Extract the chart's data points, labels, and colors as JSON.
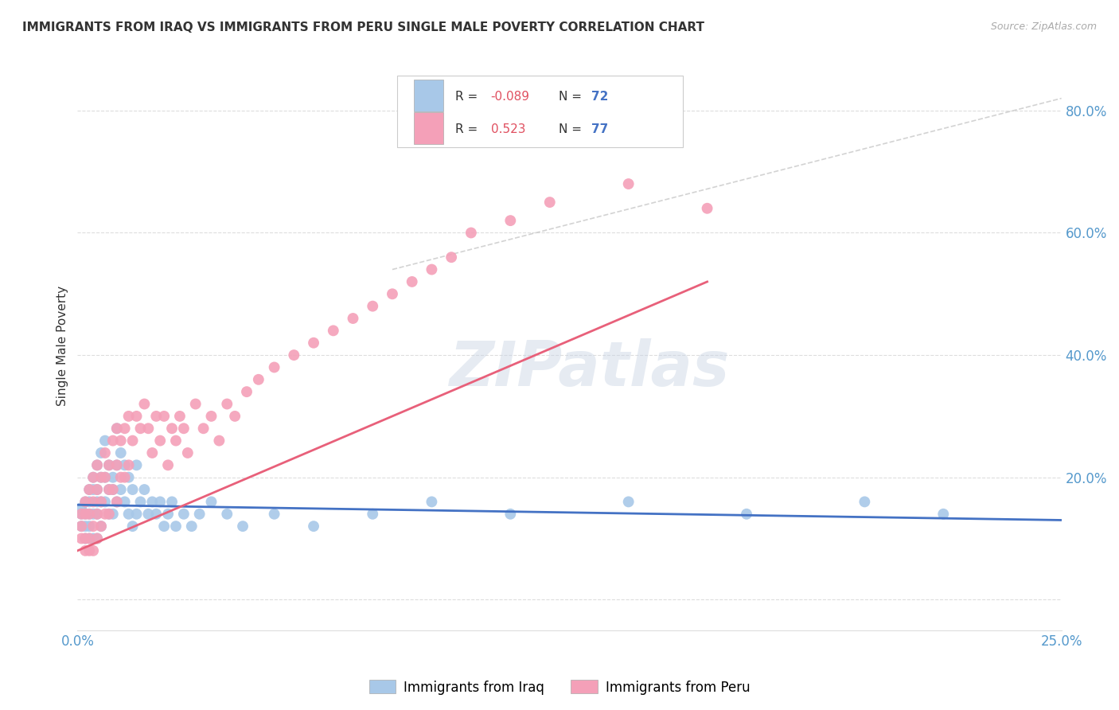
{
  "title": "IMMIGRANTS FROM IRAQ VS IMMIGRANTS FROM PERU SINGLE MALE POVERTY CORRELATION CHART",
  "source": "Source: ZipAtlas.com",
  "ylabel": "Single Male Poverty",
  "xlim": [
    0,
    0.25
  ],
  "ylim": [
    -0.05,
    0.88
  ],
  "iraq_color": "#a8c8e8",
  "peru_color": "#f4a0b8",
  "iraq_line_color": "#4472c4",
  "peru_line_color": "#e8607a",
  "diag_line_color": "#c8c8c8",
  "iraq_R": -0.089,
  "iraq_N": 72,
  "peru_R": 0.523,
  "peru_N": 77,
  "watermark": "ZIPatlas",
  "legend_label_iraq": "Immigrants from Iraq",
  "legend_label_peru": "Immigrants from Peru",
  "iraq_x": [
    0.001,
    0.001,
    0.001,
    0.002,
    0.002,
    0.002,
    0.002,
    0.003,
    0.003,
    0.003,
    0.003,
    0.003,
    0.004,
    0.004,
    0.004,
    0.004,
    0.005,
    0.005,
    0.005,
    0.005,
    0.005,
    0.006,
    0.006,
    0.006,
    0.006,
    0.007,
    0.007,
    0.007,
    0.008,
    0.008,
    0.008,
    0.009,
    0.009,
    0.009,
    0.01,
    0.01,
    0.01,
    0.011,
    0.011,
    0.012,
    0.012,
    0.013,
    0.013,
    0.014,
    0.014,
    0.015,
    0.015,
    0.016,
    0.017,
    0.018,
    0.019,
    0.02,
    0.021,
    0.022,
    0.023,
    0.024,
    0.025,
    0.027,
    0.029,
    0.031,
    0.034,
    0.038,
    0.042,
    0.05,
    0.06,
    0.075,
    0.09,
    0.11,
    0.14,
    0.17,
    0.2,
    0.22
  ],
  "iraq_y": [
    0.15,
    0.14,
    0.12,
    0.16,
    0.14,
    0.12,
    0.1,
    0.18,
    0.16,
    0.14,
    0.12,
    0.1,
    0.2,
    0.18,
    0.14,
    0.1,
    0.22,
    0.18,
    0.16,
    0.14,
    0.1,
    0.24,
    0.2,
    0.16,
    0.12,
    0.26,
    0.2,
    0.16,
    0.22,
    0.18,
    0.14,
    0.2,
    0.18,
    0.14,
    0.28,
    0.22,
    0.16,
    0.24,
    0.18,
    0.22,
    0.16,
    0.2,
    0.14,
    0.18,
    0.12,
    0.22,
    0.14,
    0.16,
    0.18,
    0.14,
    0.16,
    0.14,
    0.16,
    0.12,
    0.14,
    0.16,
    0.12,
    0.14,
    0.12,
    0.14,
    0.16,
    0.14,
    0.12,
    0.14,
    0.12,
    0.14,
    0.16,
    0.14,
    0.16,
    0.14,
    0.16,
    0.14
  ],
  "peru_x": [
    0.001,
    0.001,
    0.001,
    0.002,
    0.002,
    0.002,
    0.002,
    0.003,
    0.003,
    0.003,
    0.003,
    0.004,
    0.004,
    0.004,
    0.004,
    0.005,
    0.005,
    0.005,
    0.005,
    0.006,
    0.006,
    0.006,
    0.007,
    0.007,
    0.007,
    0.008,
    0.008,
    0.008,
    0.009,
    0.009,
    0.01,
    0.01,
    0.01,
    0.011,
    0.011,
    0.012,
    0.012,
    0.013,
    0.013,
    0.014,
    0.015,
    0.016,
    0.017,
    0.018,
    0.019,
    0.02,
    0.021,
    0.022,
    0.023,
    0.024,
    0.025,
    0.026,
    0.027,
    0.028,
    0.03,
    0.032,
    0.034,
    0.036,
    0.038,
    0.04,
    0.043,
    0.046,
    0.05,
    0.055,
    0.06,
    0.065,
    0.07,
    0.075,
    0.08,
    0.085,
    0.09,
    0.095,
    0.1,
    0.11,
    0.12,
    0.14,
    0.16
  ],
  "peru_y": [
    0.14,
    0.12,
    0.1,
    0.16,
    0.14,
    0.1,
    0.08,
    0.18,
    0.14,
    0.1,
    0.08,
    0.2,
    0.16,
    0.12,
    0.08,
    0.22,
    0.18,
    0.14,
    0.1,
    0.2,
    0.16,
    0.12,
    0.24,
    0.2,
    0.14,
    0.22,
    0.18,
    0.14,
    0.26,
    0.18,
    0.28,
    0.22,
    0.16,
    0.26,
    0.2,
    0.28,
    0.2,
    0.3,
    0.22,
    0.26,
    0.3,
    0.28,
    0.32,
    0.28,
    0.24,
    0.3,
    0.26,
    0.3,
    0.22,
    0.28,
    0.26,
    0.3,
    0.28,
    0.24,
    0.32,
    0.28,
    0.3,
    0.26,
    0.32,
    0.3,
    0.34,
    0.36,
    0.38,
    0.4,
    0.42,
    0.44,
    0.46,
    0.48,
    0.5,
    0.52,
    0.54,
    0.56,
    0.6,
    0.62,
    0.65,
    0.68,
    0.64
  ],
  "iraq_line_x": [
    0.0,
    0.25
  ],
  "iraq_line_y": [
    0.155,
    0.13
  ],
  "peru_line_x": [
    0.0,
    0.16
  ],
  "peru_line_y": [
    0.08,
    0.52
  ],
  "diag_line_x": [
    0.08,
    0.25
  ],
  "diag_line_y": [
    0.54,
    0.82
  ]
}
